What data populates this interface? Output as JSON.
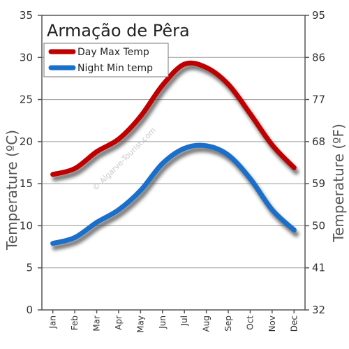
{
  "chart_data": {
    "type": "line",
    "title": "Armação de Pêra",
    "watermark": "© Algarve-Tourist.com",
    "categories": [
      "Jan",
      "Feb",
      "Mar",
      "Apr",
      "May",
      "Jun",
      "Jul",
      "Aug",
      "Sep",
      "Oct",
      "Nov",
      "Dec"
    ],
    "series": [
      {
        "name": "Day Max Temp",
        "color": "#c00000",
        "values": [
          16.1,
          16.8,
          18.8,
          20.3,
          23.0,
          26.7,
          29.2,
          28.8,
          26.8,
          23.3,
          19.6,
          16.9
        ]
      },
      {
        "name": "Night Min temp",
        "color": "#1a6fcb",
        "values": [
          7.9,
          8.6,
          10.4,
          11.9,
          14.2,
          17.4,
          19.2,
          19.5,
          18.4,
          15.6,
          11.9,
          9.5
        ]
      }
    ],
    "ylabel": "Temperature (ºC)",
    "ylabel_right": "Temperature (ºF)",
    "ylim": [
      0,
      35
    ],
    "yticks_left": [
      "0",
      "5",
      "10",
      "15",
      "20",
      "25",
      "30",
      "35"
    ],
    "yticks_right": [
      "32",
      "41",
      "50",
      "59",
      "68",
      "77",
      "86",
      "95"
    ],
    "grid": true,
    "legend_position": "top-left"
  }
}
